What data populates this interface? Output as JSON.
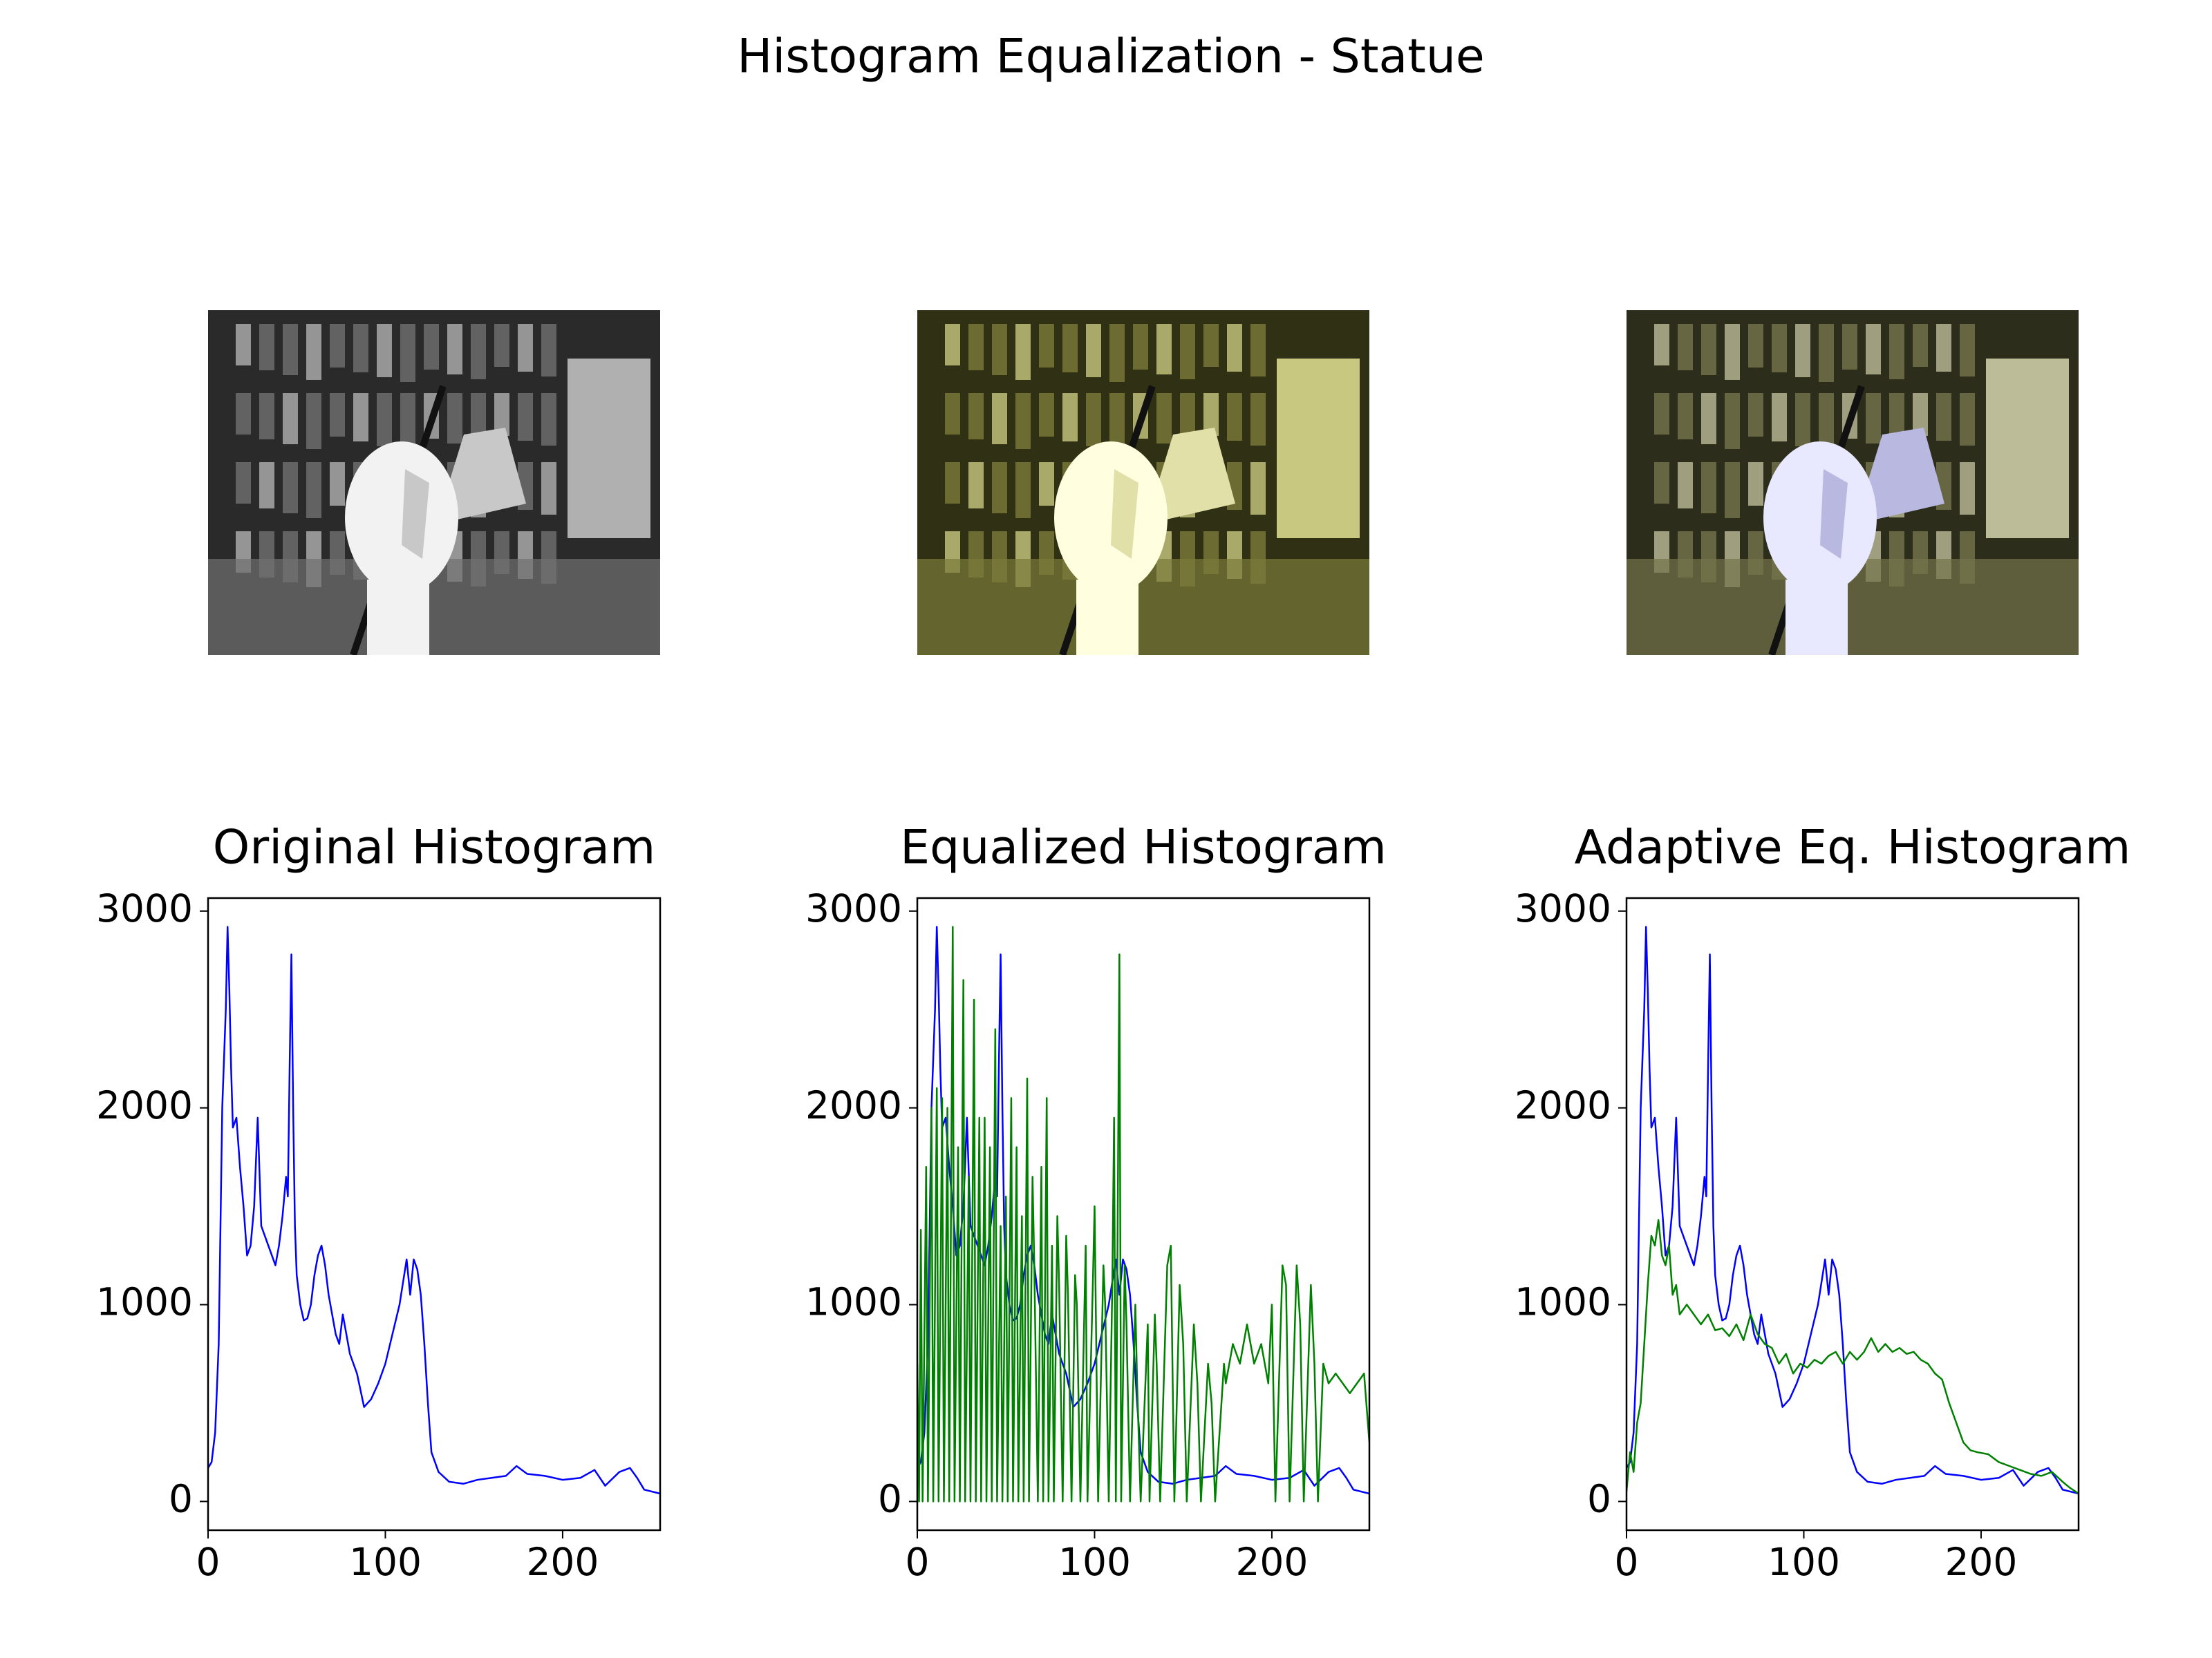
{
  "title": "Histogram Equalization - Statue",
  "chart_data": [
    {
      "type": "line",
      "title": "Original Histogram",
      "xlim": [
        0,
        255
      ],
      "ylim": [
        -146,
        3066
      ],
      "xticks": [
        0,
        100,
        200
      ],
      "yticks": [
        0,
        1000,
        2000,
        3000
      ],
      "series": [
        {
          "color": "#0000ff",
          "x": [
            0,
            2,
            4,
            6,
            8,
            10,
            11,
            12,
            13,
            14,
            16,
            18,
            20,
            22,
            24,
            26,
            28,
            30,
            32,
            34,
            36,
            38,
            40,
            42,
            44,
            45,
            46,
            47,
            48,
            49,
            50,
            52,
            54,
            56,
            58,
            60,
            62,
            64,
            66,
            68,
            70,
            72,
            74,
            76,
            78,
            80,
            84,
            88,
            92,
            96,
            100,
            104,
            108,
            112,
            114,
            116,
            118,
            120,
            122,
            124,
            126,
            130,
            136,
            144,
            152,
            160,
            168,
            174,
            180,
            190,
            200,
            210,
            218,
            224,
            232,
            238,
            242,
            246,
            255
          ],
          "values": [
            170,
            200,
            350,
            800,
            2000,
            2500,
            2920,
            2600,
            2200,
            1900,
            1950,
            1700,
            1500,
            1250,
            1300,
            1500,
            1950,
            1400,
            1350,
            1300,
            1250,
            1200,
            1300,
            1450,
            1650,
            1550,
            2200,
            2780,
            2000,
            1400,
            1150,
            1000,
            920,
            930,
            1000,
            1150,
            1250,
            1300,
            1200,
            1050,
            950,
            850,
            800,
            950,
            850,
            750,
            650,
            480,
            520,
            600,
            700,
            850,
            1000,
            1230,
            1050,
            1230,
            1180,
            1050,
            800,
            500,
            250,
            150,
            100,
            90,
            110,
            120,
            130,
            180,
            140,
            130,
            110,
            120,
            160,
            80,
            150,
            170,
            120,
            60,
            40
          ]
        }
      ]
    },
    {
      "type": "line",
      "title": "Equalized Histogram",
      "xlim": [
        0,
        255
      ],
      "ylim": [
        -146,
        3066
      ],
      "xticks": [
        0,
        100,
        200
      ],
      "yticks": [
        0,
        1000,
        2000,
        3000
      ],
      "series": [
        {
          "color": "#0000ff",
          "x": [
            0,
            2,
            4,
            6,
            8,
            10,
            11,
            12,
            13,
            14,
            16,
            18,
            20,
            22,
            24,
            26,
            28,
            30,
            32,
            34,
            36,
            38,
            40,
            42,
            44,
            45,
            46,
            47,
            48,
            49,
            50,
            52,
            54,
            56,
            58,
            60,
            62,
            64,
            66,
            68,
            70,
            72,
            74,
            76,
            78,
            80,
            84,
            88,
            92,
            96,
            100,
            104,
            108,
            112,
            114,
            116,
            118,
            120,
            122,
            124,
            126,
            130,
            136,
            144,
            152,
            160,
            168,
            174,
            180,
            190,
            200,
            210,
            218,
            224,
            232,
            238,
            242,
            246,
            255
          ],
          "values": [
            170,
            200,
            350,
            800,
            2000,
            2500,
            2920,
            2600,
            2200,
            1900,
            1950,
            1700,
            1500,
            1250,
            1300,
            1500,
            1950,
            1400,
            1350,
            1300,
            1250,
            1200,
            1300,
            1450,
            1650,
            1550,
            2200,
            2780,
            2000,
            1400,
            1150,
            1000,
            920,
            930,
            1000,
            1150,
            1250,
            1300,
            1200,
            1050,
            950,
            850,
            800,
            950,
            850,
            750,
            650,
            480,
            520,
            600,
            700,
            850,
            1000,
            1230,
            1050,
            1230,
            1180,
            1050,
            800,
            500,
            250,
            150,
            100,
            90,
            110,
            120,
            130,
            180,
            140,
            130,
            110,
            120,
            160,
            80,
            150,
            170,
            120,
            60,
            40
          ]
        },
        {
          "color": "#008000",
          "x": [
            0,
            1,
            2,
            3,
            5,
            6,
            8,
            9,
            11,
            12,
            14,
            15,
            17,
            18,
            20,
            21,
            23,
            24,
            26,
            27,
            29,
            30,
            32,
            33,
            35,
            36,
            38,
            39,
            41,
            42,
            44,
            45,
            47,
            48,
            50,
            51,
            53,
            54,
            56,
            57,
            59,
            60,
            62,
            63,
            65,
            66,
            68,
            70,
            71,
            73,
            74,
            76,
            77,
            79,
            80,
            82,
            84,
            85,
            87,
            89,
            90,
            92,
            95,
            96,
            99,
            100,
            102,
            105,
            106,
            108,
            110,
            111,
            112,
            114,
            115,
            117,
            118,
            120,
            123,
            124,
            126,
            130,
            131,
            134,
            135,
            137,
            141,
            143,
            145,
            148,
            150,
            152,
            156,
            158,
            160,
            164,
            166,
            168,
            173,
            174,
            178,
            182,
            186,
            190,
            194,
            198,
            200,
            202,
            206,
            208,
            210,
            214,
            216,
            218,
            222,
            224,
            226,
            229,
            232,
            236,
            240,
            244,
            248,
            252,
            255
          ],
          "values": [
            700,
            0,
            1380,
            0,
            1700,
            0,
            2000,
            0,
            2100,
            0,
            2050,
            0,
            2000,
            0,
            2920,
            0,
            1800,
            0,
            2650,
            0,
            1650,
            0,
            2550,
            0,
            1950,
            0,
            1950,
            0,
            1800,
            0,
            2400,
            0,
            1400,
            0,
            1550,
            0,
            2050,
            0,
            1800,
            0,
            1450,
            0,
            2150,
            0,
            1650,
            1200,
            0,
            1700,
            0,
            2050,
            0,
            1300,
            0,
            1450,
            1100,
            0,
            1350,
            1050,
            0,
            1150,
            1000,
            0,
            1300,
            0,
            1100,
            1500,
            0,
            1200,
            1000,
            0,
            1100,
            1950,
            0,
            2780,
            0,
            1200,
            900,
            0,
            1000,
            600,
            0,
            900,
            0,
            950,
            700,
            0,
            1200,
            1300,
            0,
            1100,
            800,
            0,
            900,
            600,
            0,
            700,
            500,
            0,
            700,
            600,
            800,
            700,
            900,
            700,
            800,
            600,
            1000,
            0,
            1200,
            1100,
            0,
            1200,
            900,
            0,
            1100,
            700,
            0,
            700,
            600,
            650,
            600,
            550,
            600,
            650,
            300
          ]
        }
      ]
    },
    {
      "type": "line",
      "title": "Adaptive Eq. Histogram",
      "xlim": [
        0,
        255
      ],
      "ylim": [
        -146,
        3066
      ],
      "xticks": [
        0,
        100,
        200
      ],
      "yticks": [
        0,
        1000,
        2000,
        3000
      ],
      "series": [
        {
          "color": "#0000ff",
          "x": [
            0,
            2,
            4,
            6,
            8,
            10,
            11,
            12,
            13,
            14,
            16,
            18,
            20,
            22,
            24,
            26,
            28,
            30,
            32,
            34,
            36,
            38,
            40,
            42,
            44,
            45,
            46,
            47,
            48,
            49,
            50,
            52,
            54,
            56,
            58,
            60,
            62,
            64,
            66,
            68,
            70,
            72,
            74,
            76,
            78,
            80,
            84,
            88,
            92,
            96,
            100,
            104,
            108,
            112,
            114,
            116,
            118,
            120,
            122,
            124,
            126,
            130,
            136,
            144,
            152,
            160,
            168,
            174,
            180,
            190,
            200,
            210,
            218,
            224,
            232,
            238,
            242,
            246,
            255
          ],
          "values": [
            170,
            200,
            350,
            800,
            2000,
            2500,
            2920,
            2600,
            2200,
            1900,
            1950,
            1700,
            1500,
            1250,
            1300,
            1500,
            1950,
            1400,
            1350,
            1300,
            1250,
            1200,
            1300,
            1450,
            1650,
            1550,
            2200,
            2780,
            2000,
            1400,
            1150,
            1000,
            920,
            930,
            1000,
            1150,
            1250,
            1300,
            1200,
            1050,
            950,
            850,
            800,
            950,
            850,
            750,
            650,
            480,
            520,
            600,
            700,
            850,
            1000,
            1230,
            1050,
            1230,
            1180,
            1050,
            800,
            500,
            250,
            150,
            100,
            90,
            110,
            120,
            130,
            180,
            140,
            130,
            110,
            120,
            160,
            80,
            150,
            170,
            120,
            60,
            40
          ]
        },
        {
          "color": "#008000",
          "x": [
            0,
            2,
            4,
            6,
            8,
            10,
            12,
            14,
            16,
            18,
            20,
            22,
            24,
            26,
            28,
            30,
            34,
            38,
            42,
            46,
            50,
            54,
            58,
            62,
            66,
            70,
            74,
            78,
            82,
            86,
            90,
            94,
            98,
            102,
            106,
            110,
            114,
            118,
            122,
            126,
            130,
            134,
            138,
            142,
            146,
            150,
            154,
            158,
            162,
            166,
            170,
            174,
            178,
            182,
            186,
            190,
            194,
            198,
            204,
            210,
            216,
            222,
            228,
            234,
            240,
            246,
            250,
            255
          ],
          "values": [
            50,
            250,
            150,
            400,
            500,
            800,
            1100,
            1350,
            1300,
            1430,
            1250,
            1200,
            1300,
            1050,
            1100,
            950,
            1000,
            950,
            900,
            950,
            870,
            880,
            840,
            900,
            820,
            950,
            850,
            800,
            780,
            700,
            750,
            650,
            700,
            680,
            720,
            700,
            740,
            760,
            700,
            760,
            720,
            760,
            830,
            760,
            800,
            760,
            780,
            750,
            760,
            720,
            700,
            650,
            620,
            500,
            400,
            300,
            260,
            250,
            240,
            200,
            180,
            160,
            140,
            130,
            150,
            100,
            70,
            40
          ]
        }
      ]
    }
  ]
}
